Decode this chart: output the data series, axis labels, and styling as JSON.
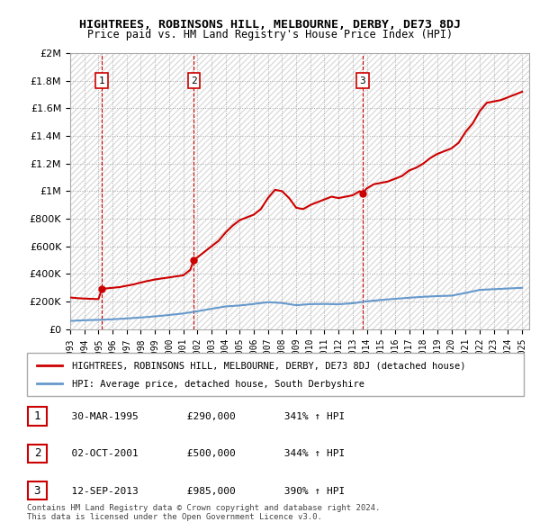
{
  "title": "HIGHTREES, ROBINSONS HILL, MELBOURNE, DERBY, DE73 8DJ",
  "subtitle": "Price paid vs. HM Land Registry's House Price Index (HPI)",
  "ylabel_ticks": [
    0,
    200000,
    400000,
    600000,
    800000,
    1000000,
    1200000,
    1400000,
    1600000,
    1800000,
    2000000
  ],
  "ylabel_labels": [
    "£0",
    "£200K",
    "£400K",
    "£600K",
    "£800K",
    "£1M",
    "£1.2M",
    "£1.4M",
    "£1.6M",
    "£1.8M",
    "£2M"
  ],
  "xmin": 1993.0,
  "xmax": 2025.5,
  "ymin": 0,
  "ymax": 2000000,
  "transaction_dates": [
    1995.24,
    2001.75,
    2013.7
  ],
  "transaction_prices": [
    290000,
    500000,
    985000
  ],
  "transaction_labels": [
    "1",
    "2",
    "3"
  ],
  "red_line_color": "#cc0000",
  "blue_line_color": "#6699cc",
  "vline_color": "#cc0000",
  "background_hatch_color": "#cccccc",
  "legend_label_red": "HIGHTREES, ROBINSONS HILL, MELBOURNE, DERBY, DE73 8DJ (detached house)",
  "legend_label_blue": "HPI: Average price, detached house, South Derbyshire",
  "table_rows": [
    [
      "1",
      "30-MAR-1995",
      "£290,000",
      "341% ↑ HPI"
    ],
    [
      "2",
      "02-OCT-2001",
      "£500,000",
      "344% ↑ HPI"
    ],
    [
      "3",
      "12-SEP-2013",
      "£985,000",
      "390% ↑ HPI"
    ]
  ],
  "footer": "Contains HM Land Registry data © Crown copyright and database right 2024.\nThis data is licensed under the Open Government Licence v3.0.",
  "red_hpi_x": [
    1993.0,
    1993.5,
    1994.0,
    1994.5,
    1995.0,
    1995.24,
    1995.5,
    1996.0,
    1996.5,
    1997.0,
    1997.5,
    1998.0,
    1998.5,
    1999.0,
    1999.5,
    2000.0,
    2000.5,
    2001.0,
    2001.5,
    2001.75,
    2002.0,
    2002.5,
    2003.0,
    2003.5,
    2004.0,
    2004.5,
    2005.0,
    2005.5,
    2006.0,
    2006.5,
    2007.0,
    2007.5,
    2008.0,
    2008.5,
    2009.0,
    2009.5,
    2010.0,
    2010.5,
    2011.0,
    2011.5,
    2012.0,
    2012.5,
    2013.0,
    2013.5,
    2013.7,
    2014.0,
    2014.5,
    2015.0,
    2015.5,
    2016.0,
    2016.5,
    2017.0,
    2017.5,
    2018.0,
    2018.5,
    2019.0,
    2019.5,
    2020.0,
    2020.5,
    2021.0,
    2021.5,
    2022.0,
    2022.5,
    2023.0,
    2023.5,
    2024.0,
    2024.5,
    2025.0
  ],
  "red_hpi_y": [
    230000,
    225000,
    222000,
    220000,
    218000,
    290000,
    295000,
    300000,
    305000,
    315000,
    325000,
    338000,
    350000,
    360000,
    368000,
    375000,
    383000,
    390000,
    430000,
    500000,
    520000,
    560000,
    600000,
    640000,
    700000,
    750000,
    790000,
    810000,
    830000,
    870000,
    950000,
    1010000,
    1000000,
    950000,
    880000,
    870000,
    900000,
    920000,
    940000,
    960000,
    950000,
    960000,
    970000,
    1000000,
    985000,
    1020000,
    1050000,
    1060000,
    1070000,
    1090000,
    1110000,
    1150000,
    1170000,
    1200000,
    1240000,
    1270000,
    1290000,
    1310000,
    1350000,
    1430000,
    1490000,
    1580000,
    1640000,
    1650000,
    1660000,
    1680000,
    1700000,
    1720000
  ],
  "blue_hpi_x": [
    1993.0,
    1994.0,
    1995.0,
    1996.0,
    1997.0,
    1998.0,
    1999.0,
    2000.0,
    2001.0,
    2002.0,
    2003.0,
    2004.0,
    2005.0,
    2006.0,
    2007.0,
    2008.0,
    2009.0,
    2010.0,
    2011.0,
    2012.0,
    2013.0,
    2014.0,
    2015.0,
    2016.0,
    2017.0,
    2018.0,
    2019.0,
    2020.0,
    2021.0,
    2022.0,
    2023.0,
    2024.0,
    2025.0
  ],
  "blue_hpi_y": [
    60000,
    65000,
    68000,
    72000,
    78000,
    85000,
    93000,
    103000,
    114000,
    130000,
    148000,
    165000,
    172000,
    183000,
    196000,
    190000,
    174000,
    182000,
    183000,
    181000,
    188000,
    202000,
    212000,
    220000,
    228000,
    235000,
    240000,
    243000,
    263000,
    285000,
    290000,
    295000,
    300000
  ]
}
